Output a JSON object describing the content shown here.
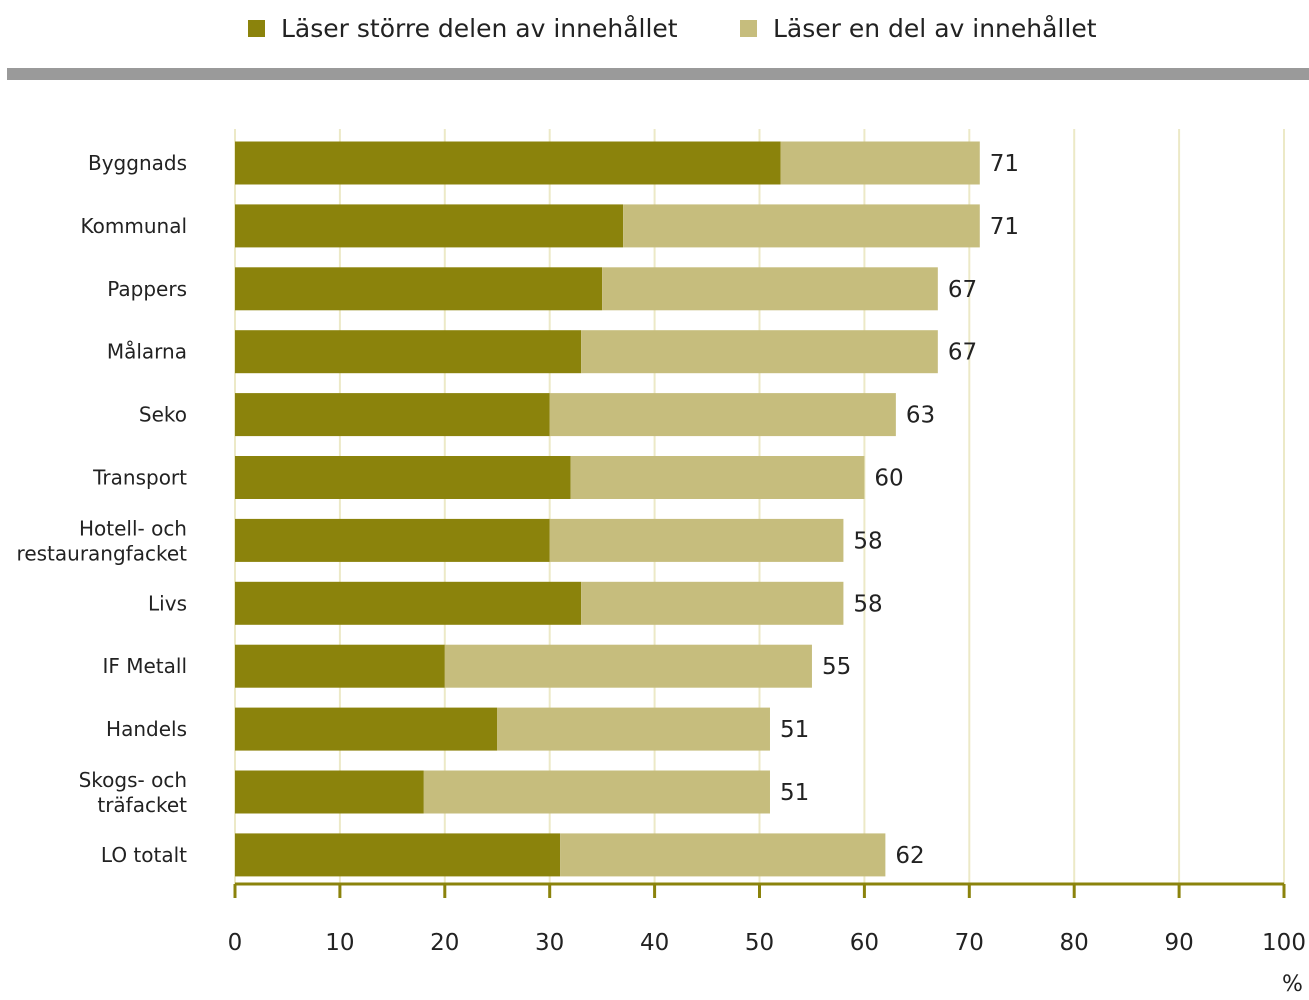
{
  "legend": [
    {
      "label": "Läser större delen av innehållet",
      "color": "#8b830c"
    },
    {
      "label": "Läser en del av innehållet",
      "color": "#c6bd7d"
    }
  ],
  "rule_color": "#9a9a9a",
  "axis_color": "#8b830c",
  "grid_color": "#ece9c7",
  "unit": "%",
  "chart_data": {
    "type": "bar",
    "orientation": "horizontal",
    "stacked": true,
    "categories": [
      "Byggnads",
      "Kommunal",
      "Pappers",
      "Målarna",
      "Seko",
      "Transport",
      "Hotell- och restaurangfacket",
      "Livs",
      "IF Metall",
      "Handels",
      "Skogs- och träfacket",
      "LO totalt"
    ],
    "category_lines": [
      [
        "Byggnads"
      ],
      [
        "Kommunal"
      ],
      [
        "Pappers"
      ],
      [
        "Målarna"
      ],
      [
        "Seko"
      ],
      [
        "Transport"
      ],
      [
        "Hotell- och",
        "restaurangfacket"
      ],
      [
        "Livs"
      ],
      [
        "IF Metall"
      ],
      [
        "Handels"
      ],
      [
        "Skogs- och",
        "träfacket"
      ],
      [
        "LO totalt"
      ]
    ],
    "series": [
      {
        "name": "Läser större delen av innehållet",
        "values": [
          52,
          37,
          35,
          33,
          30,
          32,
          30,
          33,
          20,
          25,
          18,
          31
        ]
      },
      {
        "name": "Läser en del av innehållet",
        "values": [
          19,
          34,
          32,
          34,
          33,
          28,
          28,
          25,
          35,
          26,
          33,
          31
        ]
      }
    ],
    "totals": [
      71,
      71,
      67,
      67,
      63,
      60,
      58,
      58,
      55,
      51,
      51,
      62
    ],
    "xlim": [
      0,
      100
    ],
    "xticks": [
      0,
      10,
      20,
      30,
      40,
      50,
      60,
      70,
      80,
      90,
      100
    ],
    "xlabel": "%",
    "grid": true,
    "legend_position": "top"
  }
}
